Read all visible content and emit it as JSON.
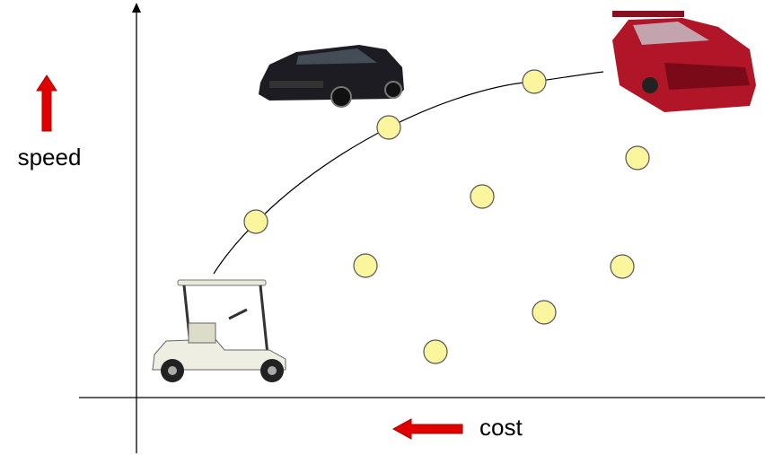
{
  "axes": {
    "y_label": "speed",
    "x_label": "cost"
  }
}
